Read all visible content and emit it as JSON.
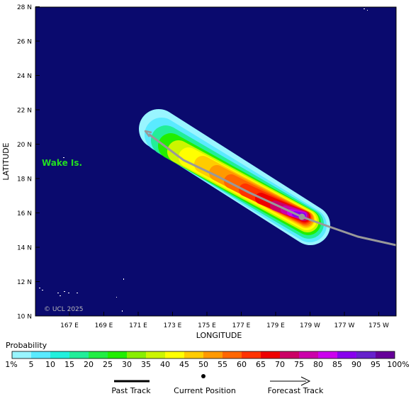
{
  "map": {
    "ylabel": "LATITUDE",
    "xlabel": "LONGITUDE",
    "y_ticks": [
      "10 N",
      "12 N",
      "14 N",
      "16 N",
      "18 N",
      "20 N",
      "22 N",
      "24 N",
      "26 N",
      "28 N"
    ],
    "x_ticks": [
      "167 E",
      "169 E",
      "171 E",
      "173 E",
      "175 E",
      "177 E",
      "179 E",
      "179 W",
      "177 W",
      "175 W"
    ],
    "place_label": "Wake Is.",
    "credit": "© UCL 2025",
    "colors": {
      "ocean": "#0a0a6e",
      "place_label": "#22dd22",
      "track": "#999999"
    },
    "lat_range": [
      10,
      28
    ],
    "lon_range_east": [
      164.9,
      185.9
    ]
  },
  "chart_data": {
    "type": "heatmap",
    "description_source": "strike probability swath along storm track",
    "track_points_lon_east": [
      171.5,
      173.5,
      176.0,
      178.7,
      181.0,
      183.0,
      185.9
    ],
    "track_points_lat": [
      20.7,
      19.0,
      17.7,
      15.8,
      15.0,
      14.6,
      14.2
    ],
    "current_position": {
      "lon_east": 178.7,
      "lat": 15.8
    }
  },
  "legend": {
    "title": "Probability",
    "labels": [
      "1%",
      "5",
      "10",
      "15",
      "20",
      "25",
      "30",
      "35",
      "40",
      "45",
      "50",
      "55",
      "60",
      "65",
      "70",
      "75",
      "80",
      "85",
      "90",
      "95",
      "100%"
    ],
    "colors": [
      "#99f5ff",
      "#5aeaff",
      "#22f0dd",
      "#22ee99",
      "#22ee44",
      "#22ee00",
      "#88ee00",
      "#ccf500",
      "#ffff00",
      "#ffcc00",
      "#ff9900",
      "#ff6600",
      "#ff3300",
      "#ee0000",
      "#cc0066",
      "#cc00aa",
      "#cc00ee",
      "#8800ee",
      "#6622cc",
      "#660099"
    ],
    "items": {
      "past": "Past Track",
      "current": "Current Position",
      "forecast": "Forecast Track"
    }
  }
}
